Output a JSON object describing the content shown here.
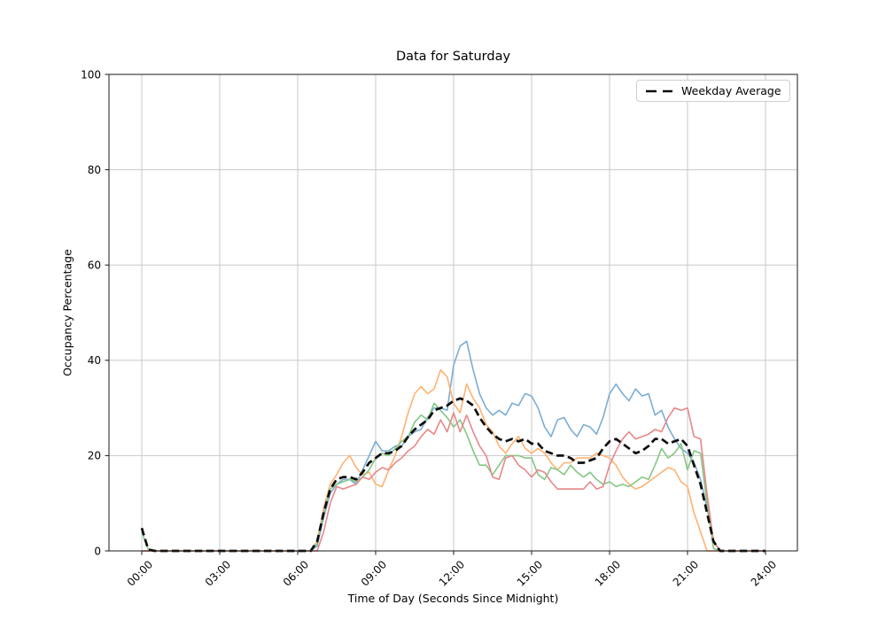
{
  "colors": {
    "series_blue": "#7badd4",
    "series_orange": "#ffb272",
    "series_green": "#84c784",
    "series_red": "#e78788",
    "average": "#0d0d0d",
    "grid": "#c9c9c9",
    "spine": "#1a1a1a",
    "background": "#ffffff"
  },
  "chart_data": {
    "type": "line",
    "title": "Data for Saturday",
    "xlabel": "Time of Day (Seconds Since Midnight)",
    "ylabel": "Occupancy Percentage",
    "grid": true,
    "legend_position": "upper right",
    "legend_entries": [
      "Weekday Average"
    ],
    "ylim": [
      0,
      100
    ],
    "yticks": [
      0,
      20,
      40,
      60,
      80,
      100
    ],
    "x_tick_hours": [
      0,
      3,
      6,
      9,
      12,
      15,
      18,
      21,
      24
    ],
    "x_tick_labels": [
      "00:00",
      "03:00",
      "06:00",
      "09:00",
      "12:00",
      "15:00",
      "18:00",
      "21:00",
      "24:00"
    ],
    "x_start_hour": 0,
    "x_step_hours": 0.25,
    "series": [
      {
        "key": "series_blue",
        "dashed": false,
        "values": [
          0,
          0,
          0,
          0,
          0,
          0,
          0,
          0,
          0,
          0,
          0,
          0,
          0,
          0,
          0,
          0,
          0,
          0,
          0,
          0,
          0,
          0,
          0,
          0,
          0,
          0,
          0,
          1,
          7,
          12,
          14,
          15,
          15,
          14,
          17,
          20,
          23,
          21,
          21,
          22,
          22,
          24,
          25,
          25.5,
          28,
          30,
          30,
          29.5,
          39,
          43,
          44,
          38,
          33,
          30,
          28.5,
          29.5,
          28.5,
          31,
          30.5,
          33,
          32.5,
          30,
          26,
          24,
          27.5,
          28,
          25.5,
          24,
          26.5,
          26,
          24.5,
          28,
          33,
          35,
          33,
          31.5,
          34,
          32.5,
          33,
          28.5,
          29.5,
          26,
          23.5,
          21.5,
          20.5,
          18.5,
          15,
          9,
          2,
          0,
          0,
          0,
          0,
          0,
          0,
          0,
          0
        ]
      },
      {
        "key": "series_orange",
        "dashed": false,
        "values": [
          0,
          0,
          0,
          0,
          0,
          0,
          0,
          0,
          0,
          0,
          0,
          0,
          0,
          0,
          0,
          0,
          0,
          0,
          0,
          0,
          0,
          0,
          0,
          0,
          0,
          0,
          0,
          2,
          9,
          14,
          16,
          18.5,
          20,
          17.5,
          16,
          16.5,
          14,
          13.5,
          17,
          20,
          24,
          29,
          33,
          34.5,
          33,
          34,
          38,
          36.5,
          31,
          29,
          35,
          32,
          30,
          26.5,
          25,
          22,
          20.5,
          22.5,
          24,
          21.5,
          20.5,
          21.5,
          20.5,
          18.5,
          17,
          18.5,
          18.5,
          19.5,
          19.5,
          19.5,
          20.5,
          20,
          19.5,
          18,
          15.5,
          14,
          13,
          13.5,
          14.5,
          15.5,
          16.5,
          17.5,
          17,
          14.5,
          13.5,
          8,
          4,
          0,
          0,
          0,
          0,
          0,
          0,
          0,
          0,
          0,
          0
        ]
      },
      {
        "key": "series_green",
        "dashed": false,
        "values": [
          4,
          0.3,
          0,
          0,
          0,
          0,
          0,
          0,
          0,
          0,
          0,
          0,
          0,
          0,
          0,
          0,
          0,
          0,
          0,
          0,
          0,
          0,
          0,
          0,
          0,
          0,
          0,
          1.5,
          8,
          13,
          14,
          14.5,
          15,
          14.5,
          15.5,
          17,
          19.5,
          20.5,
          20,
          21.5,
          23,
          24,
          27,
          28.5,
          27.5,
          31,
          29.5,
          28,
          26,
          27.5,
          24.5,
          21,
          18,
          18,
          16,
          18,
          20,
          20,
          20,
          19.5,
          19.5,
          16,
          15,
          17.5,
          17,
          16,
          18,
          16.5,
          15.5,
          16.5,
          15,
          14,
          14.5,
          13.5,
          14,
          13.5,
          14.5,
          15.5,
          15,
          18,
          21.5,
          19.5,
          20.5,
          22.5,
          17,
          21,
          20.5,
          10,
          0.5,
          0,
          0,
          0,
          0,
          0,
          0,
          0,
          0
        ]
      },
      {
        "key": "series_red",
        "dashed": false,
        "values": [
          0,
          0,
          0,
          0,
          0,
          0,
          0,
          0,
          0,
          0,
          0,
          0,
          0,
          0,
          0,
          0,
          0,
          0,
          0,
          0,
          0,
          0,
          0,
          0,
          0,
          0,
          0,
          0,
          4,
          10,
          13.5,
          13,
          13.5,
          14,
          15.5,
          15,
          16.5,
          17.5,
          17,
          18.5,
          19.5,
          21,
          22,
          24,
          25.5,
          24.5,
          27.5,
          25,
          29,
          25,
          28.5,
          25,
          22,
          20,
          15.5,
          15,
          19.5,
          20,
          18,
          17,
          15.5,
          17,
          16.5,
          14.5,
          13,
          13,
          13,
          13,
          13,
          14.5,
          13,
          13.5,
          18,
          21,
          23.5,
          25,
          23.5,
          24,
          24.5,
          25.5,
          25,
          28,
          30,
          29.5,
          30,
          24,
          23.5,
          12,
          2,
          0,
          0,
          0,
          0,
          0,
          0,
          0,
          0
        ]
      },
      {
        "key": "average",
        "label": "Weekday Average",
        "dashed": true,
        "values": [
          4.8,
          0.3,
          0,
          0,
          0,
          0,
          0,
          0,
          0,
          0,
          0,
          0,
          0,
          0,
          0,
          0,
          0,
          0,
          0,
          0,
          0,
          0,
          0,
          0,
          0,
          0,
          0,
          2,
          8,
          13,
          15,
          15.5,
          15.5,
          15,
          16.5,
          18.5,
          19.5,
          20.5,
          20.5,
          21,
          22,
          24,
          25.5,
          26.5,
          27.5,
          29.5,
          30,
          30.5,
          31.5,
          32,
          31.5,
          30.5,
          28,
          26,
          24.5,
          23.5,
          23,
          23.5,
          23,
          23.5,
          22.5,
          22.5,
          21,
          20.5,
          20,
          20,
          19.5,
          18.5,
          18.5,
          19,
          19.5,
          21.5,
          23,
          23.5,
          22.5,
          21.5,
          20.5,
          21,
          22,
          23.5,
          23.5,
          22.5,
          23,
          23.5,
          22,
          18,
          14,
          8,
          2,
          0,
          0,
          0,
          0,
          0,
          0,
          0,
          0
        ]
      }
    ]
  }
}
